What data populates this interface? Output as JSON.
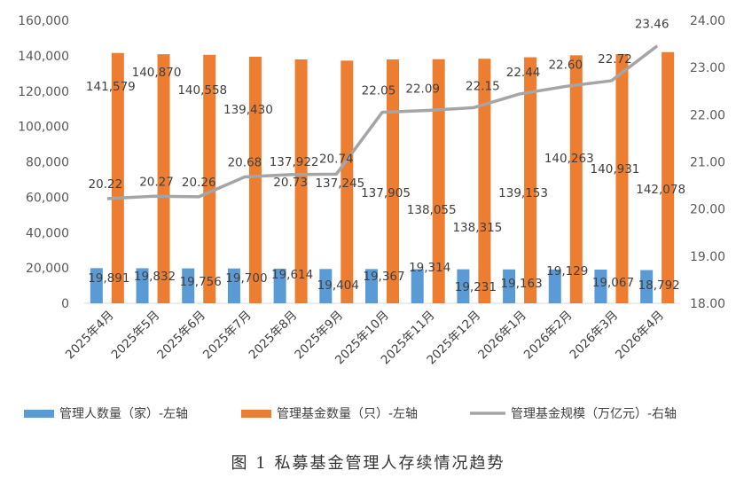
{
  "chart_data": {
    "type": "bar+line",
    "categories": [
      "2025年4月",
      "2025年5月",
      "2025年6月",
      "2025年7月",
      "2025年8月",
      "2025年9月",
      "2025年10月",
      "2025年11月",
      "2025年12月",
      "2026年1月",
      "2026年2月",
      "2026年3月",
      "2026年4月"
    ],
    "left_axis": {
      "ylim": [
        0,
        160000
      ],
      "ticks": [
        "0",
        "20,000",
        "40,000",
        "60,000",
        "80,000",
        "100,000",
        "120,000",
        "140,000",
        "160,000"
      ]
    },
    "right_axis": {
      "ylim": [
        18.0,
        24.0
      ],
      "ticks": [
        "18.00",
        "19.00",
        "20.00",
        "21.00",
        "22.00",
        "23.00",
        "24.00"
      ]
    },
    "series": [
      {
        "name": "管理人数量（家）-左轴",
        "type": "bar",
        "axis": "left",
        "color": "#5B9BD5",
        "values": [
          19891,
          19832,
          19756,
          19700,
          19614,
          19404,
          19367,
          19314,
          19231,
          19163,
          19129,
          19067,
          18792
        ],
        "labels": [
          "19,891",
          "19,832",
          "19,756",
          "19,700",
          "19,614",
          "19,404",
          "19,367",
          "19,314",
          "19,231",
          "19,163",
          "19,129",
          "19,067",
          "18,792"
        ]
      },
      {
        "name": "管理基金数量（只）-左轴",
        "type": "bar",
        "axis": "left",
        "color": "#ED7D31",
        "values": [
          141579,
          140870,
          140558,
          139430,
          137922,
          137245,
          137905,
          138055,
          138315,
          139153,
          140263,
          140931,
          142078
        ],
        "labels": [
          "141,579",
          "140,870",
          "140,558",
          "139,430",
          "137,922",
          "137,245",
          "137,905",
          "138,055",
          "138,315",
          "139,153",
          "140,263",
          "140,931",
          "142,078"
        ]
      },
      {
        "name": "管理基金规模（万亿元）-右轴",
        "type": "line",
        "axis": "right",
        "color": "#A5A5A5",
        "values": [
          20.22,
          20.27,
          20.26,
          20.68,
          20.73,
          20.74,
          22.05,
          22.09,
          22.15,
          22.44,
          22.6,
          22.72,
          23.46
        ],
        "labels": [
          "20.22",
          "20.27",
          "20.26",
          "20.68",
          "20.73",
          "20.74",
          "22.05",
          "22.09",
          "22.15",
          "22.44",
          "22.60",
          "22.72",
          "23.46"
        ]
      }
    ],
    "legend_position": "bottom",
    "grid": false
  },
  "caption": "图 1  私募基金管理人存续情况趋势"
}
